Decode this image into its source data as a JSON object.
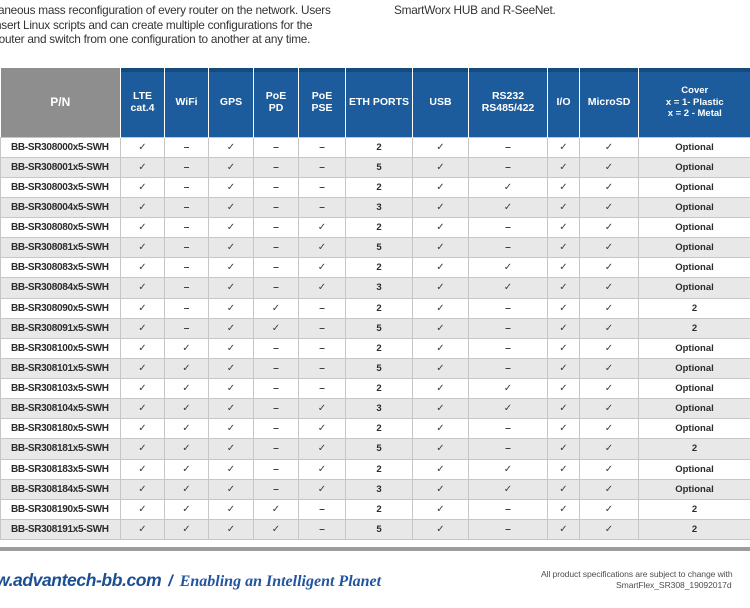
{
  "intro": {
    "left_lines": [
      "taneous mass reconfiguration of every router on the network. Users",
      "nsert Linux scripts and can create multiple configurations for the",
      "router and switch from one configuration to another at any time."
    ],
    "right_text": "SmartWorx HUB and R-SeeNet."
  },
  "table": {
    "columns": [
      {
        "id": "pn",
        "lines": [
          "P/N"
        ]
      },
      {
        "id": "lte-cat4",
        "lines": [
          "LTE",
          "cat.4"
        ]
      },
      {
        "id": "wifi",
        "lines": [
          "WiFi"
        ]
      },
      {
        "id": "gps",
        "lines": [
          "GPS"
        ]
      },
      {
        "id": "poe-pd",
        "lines": [
          "PoE",
          "PD"
        ]
      },
      {
        "id": "poe-pse",
        "lines": [
          "PoE",
          "PSE"
        ]
      },
      {
        "id": "eth-ports",
        "lines": [
          "ETH PORTS"
        ]
      },
      {
        "id": "usb",
        "lines": [
          "USB"
        ]
      },
      {
        "id": "rs232-rs485",
        "lines": [
          "RS232",
          "RS485/422"
        ]
      },
      {
        "id": "io",
        "lines": [
          "I/O"
        ]
      },
      {
        "id": "microsd",
        "lines": [
          "MicroSD"
        ]
      },
      {
        "id": "cover",
        "lines": [
          "Cover",
          "x = 1- Plastic",
          "x = 2 - Metal"
        ]
      }
    ],
    "marks": {
      "check": "✓",
      "dash": "–"
    },
    "rows": [
      {
        "pn": "BB-SR308000x5-SWH",
        "values": [
          "✓",
          "–",
          "✓",
          "–",
          "–",
          "2",
          "✓",
          "–",
          "✓",
          "✓",
          "Optional"
        ]
      },
      {
        "pn": "BB-SR308001x5-SWH",
        "values": [
          "✓",
          "–",
          "✓",
          "–",
          "–",
          "5",
          "✓",
          "–",
          "✓",
          "✓",
          "Optional"
        ]
      },
      {
        "pn": "BB-SR308003x5-SWH",
        "values": [
          "✓",
          "–",
          "✓",
          "–",
          "–",
          "2",
          "✓",
          "✓",
          "✓",
          "✓",
          "Optional"
        ]
      },
      {
        "pn": "BB-SR308004x5-SWH",
        "values": [
          "✓",
          "–",
          "✓",
          "–",
          "–",
          "3",
          "✓",
          "✓",
          "✓",
          "✓",
          "Optional"
        ]
      },
      {
        "pn": "BB-SR308080x5-SWH",
        "values": [
          "✓",
          "–",
          "✓",
          "–",
          "✓",
          "2",
          "✓",
          "–",
          "✓",
          "✓",
          "Optional"
        ]
      },
      {
        "pn": "BB-SR308081x5-SWH",
        "values": [
          "✓",
          "–",
          "✓",
          "–",
          "✓",
          "5",
          "✓",
          "–",
          "✓",
          "✓",
          "Optional"
        ]
      },
      {
        "pn": "BB-SR308083x5-SWH",
        "values": [
          "✓",
          "–",
          "✓",
          "–",
          "✓",
          "2",
          "✓",
          "✓",
          "✓",
          "✓",
          "Optional"
        ]
      },
      {
        "pn": "BB-SR308084x5-SWH",
        "values": [
          "✓",
          "–",
          "✓",
          "–",
          "✓",
          "3",
          "✓",
          "✓",
          "✓",
          "✓",
          "Optional"
        ]
      },
      {
        "pn": "BB-SR308090x5-SWH",
        "values": [
          "✓",
          "–",
          "✓",
          "✓",
          "–",
          "2",
          "✓",
          "–",
          "✓",
          "✓",
          "2"
        ]
      },
      {
        "pn": "BB-SR308091x5-SWH",
        "values": [
          "✓",
          "–",
          "✓",
          "✓",
          "–",
          "5",
          "✓",
          "–",
          "✓",
          "✓",
          "2"
        ]
      },
      {
        "pn": "BB-SR308100x5-SWH",
        "values": [
          "✓",
          "✓",
          "✓",
          "–",
          "–",
          "2",
          "✓",
          "–",
          "✓",
          "✓",
          "Optional"
        ]
      },
      {
        "pn": "BB-SR308101x5-SWH",
        "values": [
          "✓",
          "✓",
          "✓",
          "–",
          "–",
          "5",
          "✓",
          "–",
          "✓",
          "✓",
          "Optional"
        ]
      },
      {
        "pn": "BB-SR308103x5-SWH",
        "values": [
          "✓",
          "✓",
          "✓",
          "–",
          "–",
          "2",
          "✓",
          "✓",
          "✓",
          "✓",
          "Optional"
        ]
      },
      {
        "pn": "BB-SR308104x5-SWH",
        "values": [
          "✓",
          "✓",
          "✓",
          "–",
          "✓",
          "3",
          "✓",
          "✓",
          "✓",
          "✓",
          "Optional"
        ]
      },
      {
        "pn": "BB-SR308180x5-SWH",
        "values": [
          "✓",
          "✓",
          "✓",
          "–",
          "✓",
          "2",
          "✓",
          "–",
          "✓",
          "✓",
          "Optional"
        ]
      },
      {
        "pn": "BB-SR308181x5-SWH",
        "values": [
          "✓",
          "✓",
          "✓",
          "–",
          "✓",
          "5",
          "✓",
          "–",
          "✓",
          "✓",
          "2"
        ]
      },
      {
        "pn": "BB-SR308183x5-SWH",
        "values": [
          "✓",
          "✓",
          "✓",
          "–",
          "✓",
          "2",
          "✓",
          "✓",
          "✓",
          "✓",
          "Optional"
        ]
      },
      {
        "pn": "BB-SR308184x5-SWH",
        "values": [
          "✓",
          "✓",
          "✓",
          "–",
          "✓",
          "3",
          "✓",
          "✓",
          "✓",
          "✓",
          "Optional"
        ]
      },
      {
        "pn": "BB-SR308190x5-SWH",
        "values": [
          "✓",
          "✓",
          "✓",
          "✓",
          "–",
          "2",
          "✓",
          "–",
          "✓",
          "✓",
          "2"
        ]
      },
      {
        "pn": "BB-SR308191x5-SWH",
        "values": [
          "✓",
          "✓",
          "✓",
          "✓",
          "–",
          "5",
          "✓",
          "–",
          "✓",
          "✓",
          "2"
        ]
      }
    ]
  },
  "footer": {
    "website": "w.advantech-bb.com",
    "separator": "/",
    "tagline": "Enabling an Intelligent Planet",
    "note_line1": "All product specifications are subject to change with",
    "note_line2": "SmartFlex_SR308_19092017d"
  },
  "colors": {
    "header_blue": "#1d5c9c",
    "header_blue_dark": "#164a7f",
    "header_gray": "#8e8e8e",
    "row_alt": "#e8e8e8",
    "table_border": "#c6c6c6",
    "rule_gray": "#9c9c9c",
    "link_blue": "#1c4e94",
    "tagline_blue": "#2254a0"
  }
}
